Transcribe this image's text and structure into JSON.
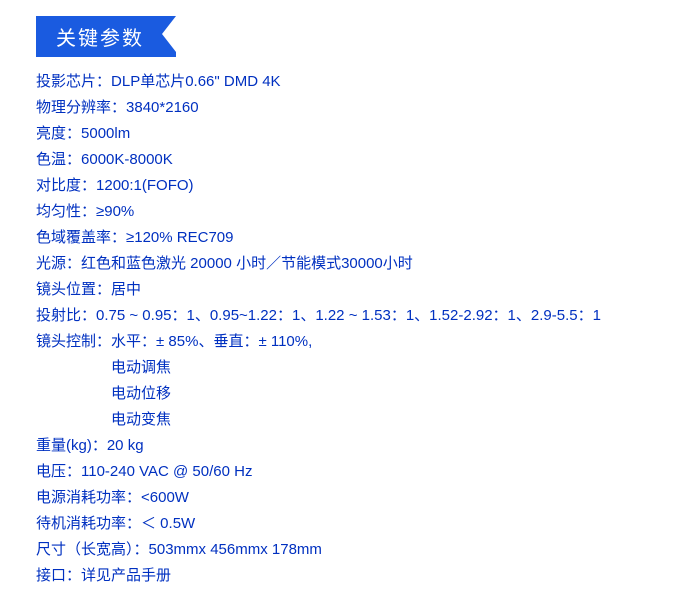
{
  "colors": {
    "ribbon_bg": "#1a5be0",
    "ribbon_text": "#ffffff",
    "text": "#0030c0",
    "background": "#ffffff"
  },
  "title": "关键参数",
  "specs": {
    "chip": {
      "label": "投影芯片：",
      "value": "DLP单芯片0.66\" DMD 4K"
    },
    "resolution": {
      "label": "物理分辨率：",
      "value": "3840*2160"
    },
    "brightness": {
      "label": "亮度：",
      "value": "5000lm"
    },
    "color_temp": {
      "label": "色温：",
      "value": "6000K-8000K"
    },
    "contrast": {
      "label": "对比度：",
      "value": "1200:1(FOFO)"
    },
    "uniformity": {
      "label": "均匀性：",
      "value": "≥90%"
    },
    "gamut": {
      "label": "色域覆盖率：",
      "value": "≥120% REC709"
    },
    "light_source": {
      "label": "光源：",
      "value": "红色和蓝色激光 20000 小时／节能模式30000小时"
    },
    "lens_position": {
      "label": "镜头位置：",
      "value": "居中"
    },
    "throw_ratio": {
      "label": "投射比：",
      "value": "0.75 ~ 0.95：1、0.95~1.22：1、1.22 ~ 1.53：1、1.52-2.92：1、2.9-5.5：1"
    },
    "lens_control": {
      "label": "镜头控制：",
      "value": "水平：± 85%、垂直：± 110%,"
    },
    "lens_sub1": "电动调焦",
    "lens_sub2": "电动位移",
    "lens_sub3": "电动变焦",
    "weight": {
      "label": "重量(kg)：",
      "value": "20 kg"
    },
    "voltage": {
      "label": "电压：",
      "value": "110-240 VAC @ 50/60 Hz"
    },
    "power": {
      "label": "电源消耗功率：",
      "value": "<600W"
    },
    "standby": {
      "label": "待机消耗功率：",
      "value": "＜ 0.5W"
    },
    "dimensions": {
      "label": "尺寸（长宽高）：",
      "value": "503mmx 456mmx 178mm"
    },
    "ports": {
      "label": "接口：",
      "value": "详见产品手册"
    }
  }
}
